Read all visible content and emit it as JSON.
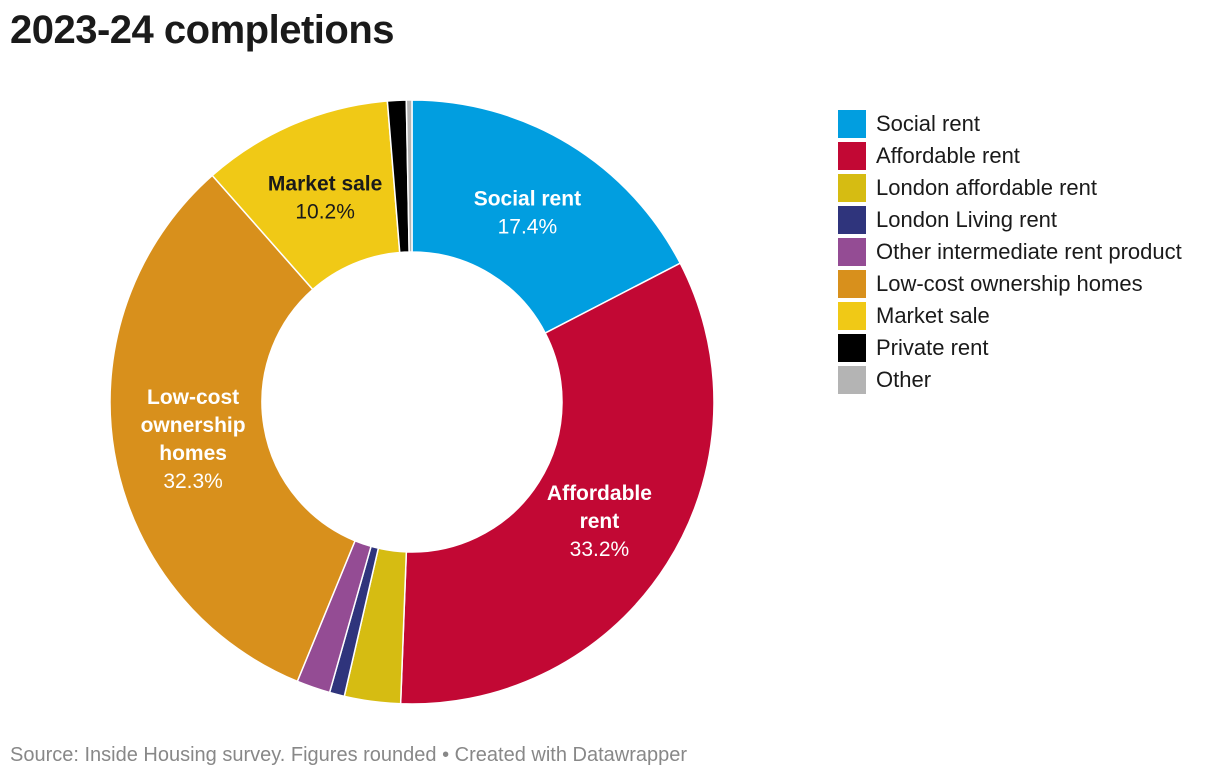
{
  "title": "2023-24 completions",
  "footer": {
    "source": "Source: Inside Housing survey. Figures rounded",
    "separator": "•",
    "credit": "Created with Datawrapper"
  },
  "chart_data": {
    "type": "pie",
    "donut": true,
    "title": "2023-24 completions",
    "legend_position": "right",
    "slices": [
      {
        "name": "Social rent",
        "value": 17.4,
        "label_lines": [
          "Social rent"
        ],
        "value_label": "17.4%",
        "color": "#019ee0",
        "label_color": "#ffffff"
      },
      {
        "name": "Affordable rent",
        "value": 33.2,
        "label_lines": [
          "Affordable",
          "rent"
        ],
        "value_label": "33.2%",
        "color": "#c20834",
        "label_color": "#ffffff"
      },
      {
        "name": "London affordable rent",
        "value": 3.0,
        "label_lines": [],
        "value_label": "",
        "color": "#d6bc12",
        "label_color": "#1a1a1a"
      },
      {
        "name": "London Living rent",
        "value": 0.8,
        "label_lines": [],
        "value_label": "",
        "color": "#2f347c",
        "label_color": "#ffffff"
      },
      {
        "name": "Other intermediate rent product",
        "value": 1.8,
        "label_lines": [],
        "value_label": "",
        "color": "#944c94",
        "label_color": "#ffffff"
      },
      {
        "name": "Low-cost ownership homes",
        "value": 32.3,
        "label_lines": [
          "Low-cost",
          "ownership",
          "homes"
        ],
        "value_label": "32.3%",
        "color": "#d8901c",
        "label_color": "#ffffff"
      },
      {
        "name": "Market sale",
        "value": 10.2,
        "label_lines": [
          "Market sale"
        ],
        "value_label": "10.2%",
        "color": "#f0c916",
        "label_color": "#1a1a1a"
      },
      {
        "name": "Private rent",
        "value": 1.0,
        "label_lines": [],
        "value_label": "",
        "color": "#000000",
        "label_color": "#ffffff"
      },
      {
        "name": "Other",
        "value": 0.3,
        "label_lines": [],
        "value_label": "",
        "color": "#b4b4b4",
        "label_color": "#1a1a1a"
      }
    ]
  }
}
